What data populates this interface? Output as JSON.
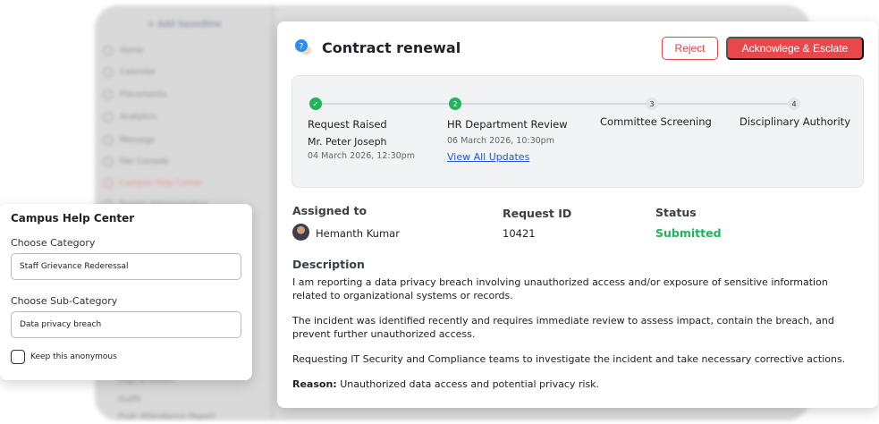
{
  "background_app": {
    "add_label": "+ Add Savedline",
    "sidebar_items": [
      "Home",
      "Calendar",
      "Placements",
      "Analytics",
      "Message",
      "Fair Console",
      "Campus Help Center",
      "Events Administration"
    ],
    "bottom_items": [
      "Logs & Issues",
      "Outfit",
      "Push Attendance Report"
    ]
  },
  "ticket": {
    "title": "Contract renewal",
    "icon": "help-chat-icon",
    "reject_label": "Reject",
    "escalate_label": "Acknowlege & Esclate",
    "steps": [
      {
        "number": "✓",
        "label": "Request Raised",
        "person": "Mr. Peter Joseph",
        "date": "04 March 2026, 12:30pm",
        "state": "done"
      },
      {
        "number": "2",
        "label": "HR Department Review",
        "date": "06 March 2026, 10:30pm",
        "link": "View All Updates",
        "state": "current"
      },
      {
        "number": "3",
        "label": "Committee Screening",
        "state": "pending"
      },
      {
        "number": "4",
        "label": "Disciplinary Authority",
        "state": "pending"
      }
    ],
    "assigned_label": "Assigned to",
    "assignee": "Hemanth Kumar",
    "request_id_label": "Request ID",
    "request_id": "10421",
    "status_label": "Status",
    "status": "Submitted",
    "status_color": "#22b35b",
    "description_label": "Description",
    "description": [
      "I am reporting a data privacy breach involving unauthorized access and/or exposure of sensitive information related to organizational systems or records.",
      "The incident was identified recently and requires immediate review to assess impact, contain the breach, and prevent further unauthorized access.",
      "Requesting IT Security and Compliance teams to investigate the incident and take necessary corrective actions."
    ],
    "reason_label": "Reason:",
    "reason": "Unauthorized data access and potential privacy risk."
  },
  "help_form": {
    "title": "Campus Help Center",
    "category_label": "Choose Category",
    "category_value": "Staff Grievance Rederessal",
    "subcategory_label": "Choose Sub-Category",
    "subcategory_value": "Data privacy breach",
    "anonymous_label": "Keep this anonymous",
    "anonymous_checked": false
  },
  "colors": {
    "accent": "#e8484b",
    "done": "#22b35b",
    "link": "#2557d6"
  }
}
